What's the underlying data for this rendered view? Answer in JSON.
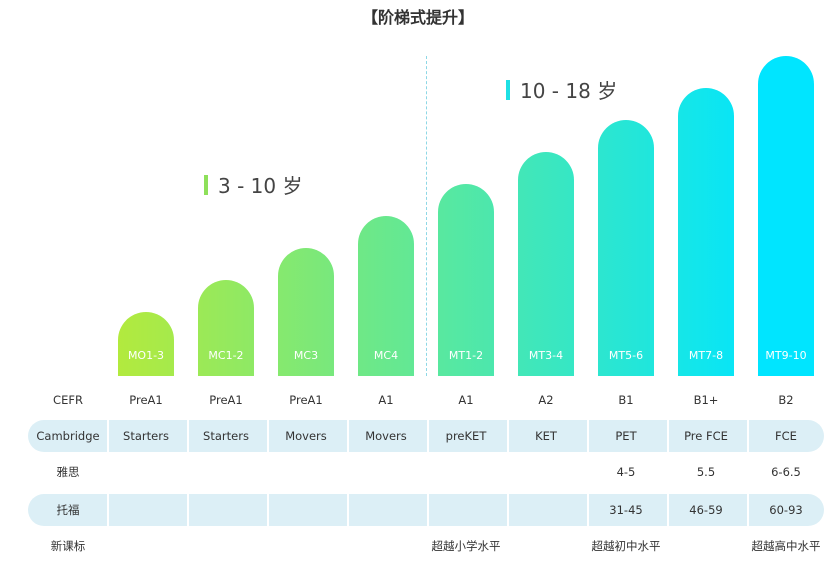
{
  "title": "【阶梯式提升】",
  "age_groups": [
    {
      "label": "3 - 10 岁"
    },
    {
      "label": "10 - 18 岁"
    }
  ],
  "colors": {
    "gradient_start": "#b2ea3e",
    "gradient_end": "#00e5ff",
    "table_band": "#dceff6"
  },
  "levels": [
    "MO1-3",
    "MC1-2",
    "MC3",
    "MC4",
    "MT1-2",
    "MT3-4",
    "MT5-6",
    "MT7-8",
    "MT9-10"
  ],
  "table": {
    "rows": [
      {
        "label": "CEFR",
        "banded": false,
        "cells": [
          "PreA1",
          "PreA1",
          "PreA1",
          "A1",
          "A1",
          "A2",
          "B1",
          "B1+",
          "B2"
        ]
      },
      {
        "label": "Cambridge",
        "banded": true,
        "cells": [
          "Starters",
          "Starters",
          "Movers",
          "Movers",
          "preKET",
          "KET",
          "PET",
          "Pre FCE",
          "FCE"
        ]
      },
      {
        "label": "雅思",
        "banded": false,
        "cells": [
          "",
          "",
          "",
          "",
          "",
          "",
          "4-5",
          "5.5",
          "6-6.5"
        ]
      },
      {
        "label": "托福",
        "banded": true,
        "cells": [
          "",
          "",
          "",
          "",
          "",
          "",
          "31-45",
          "46-59",
          "60-93"
        ]
      },
      {
        "label": "新课标",
        "banded": false,
        "cells": [
          "",
          "",
          "",
          "",
          "超越小学水平",
          "",
          "超越初中水平",
          "",
          "超越高中水平"
        ]
      }
    ]
  }
}
